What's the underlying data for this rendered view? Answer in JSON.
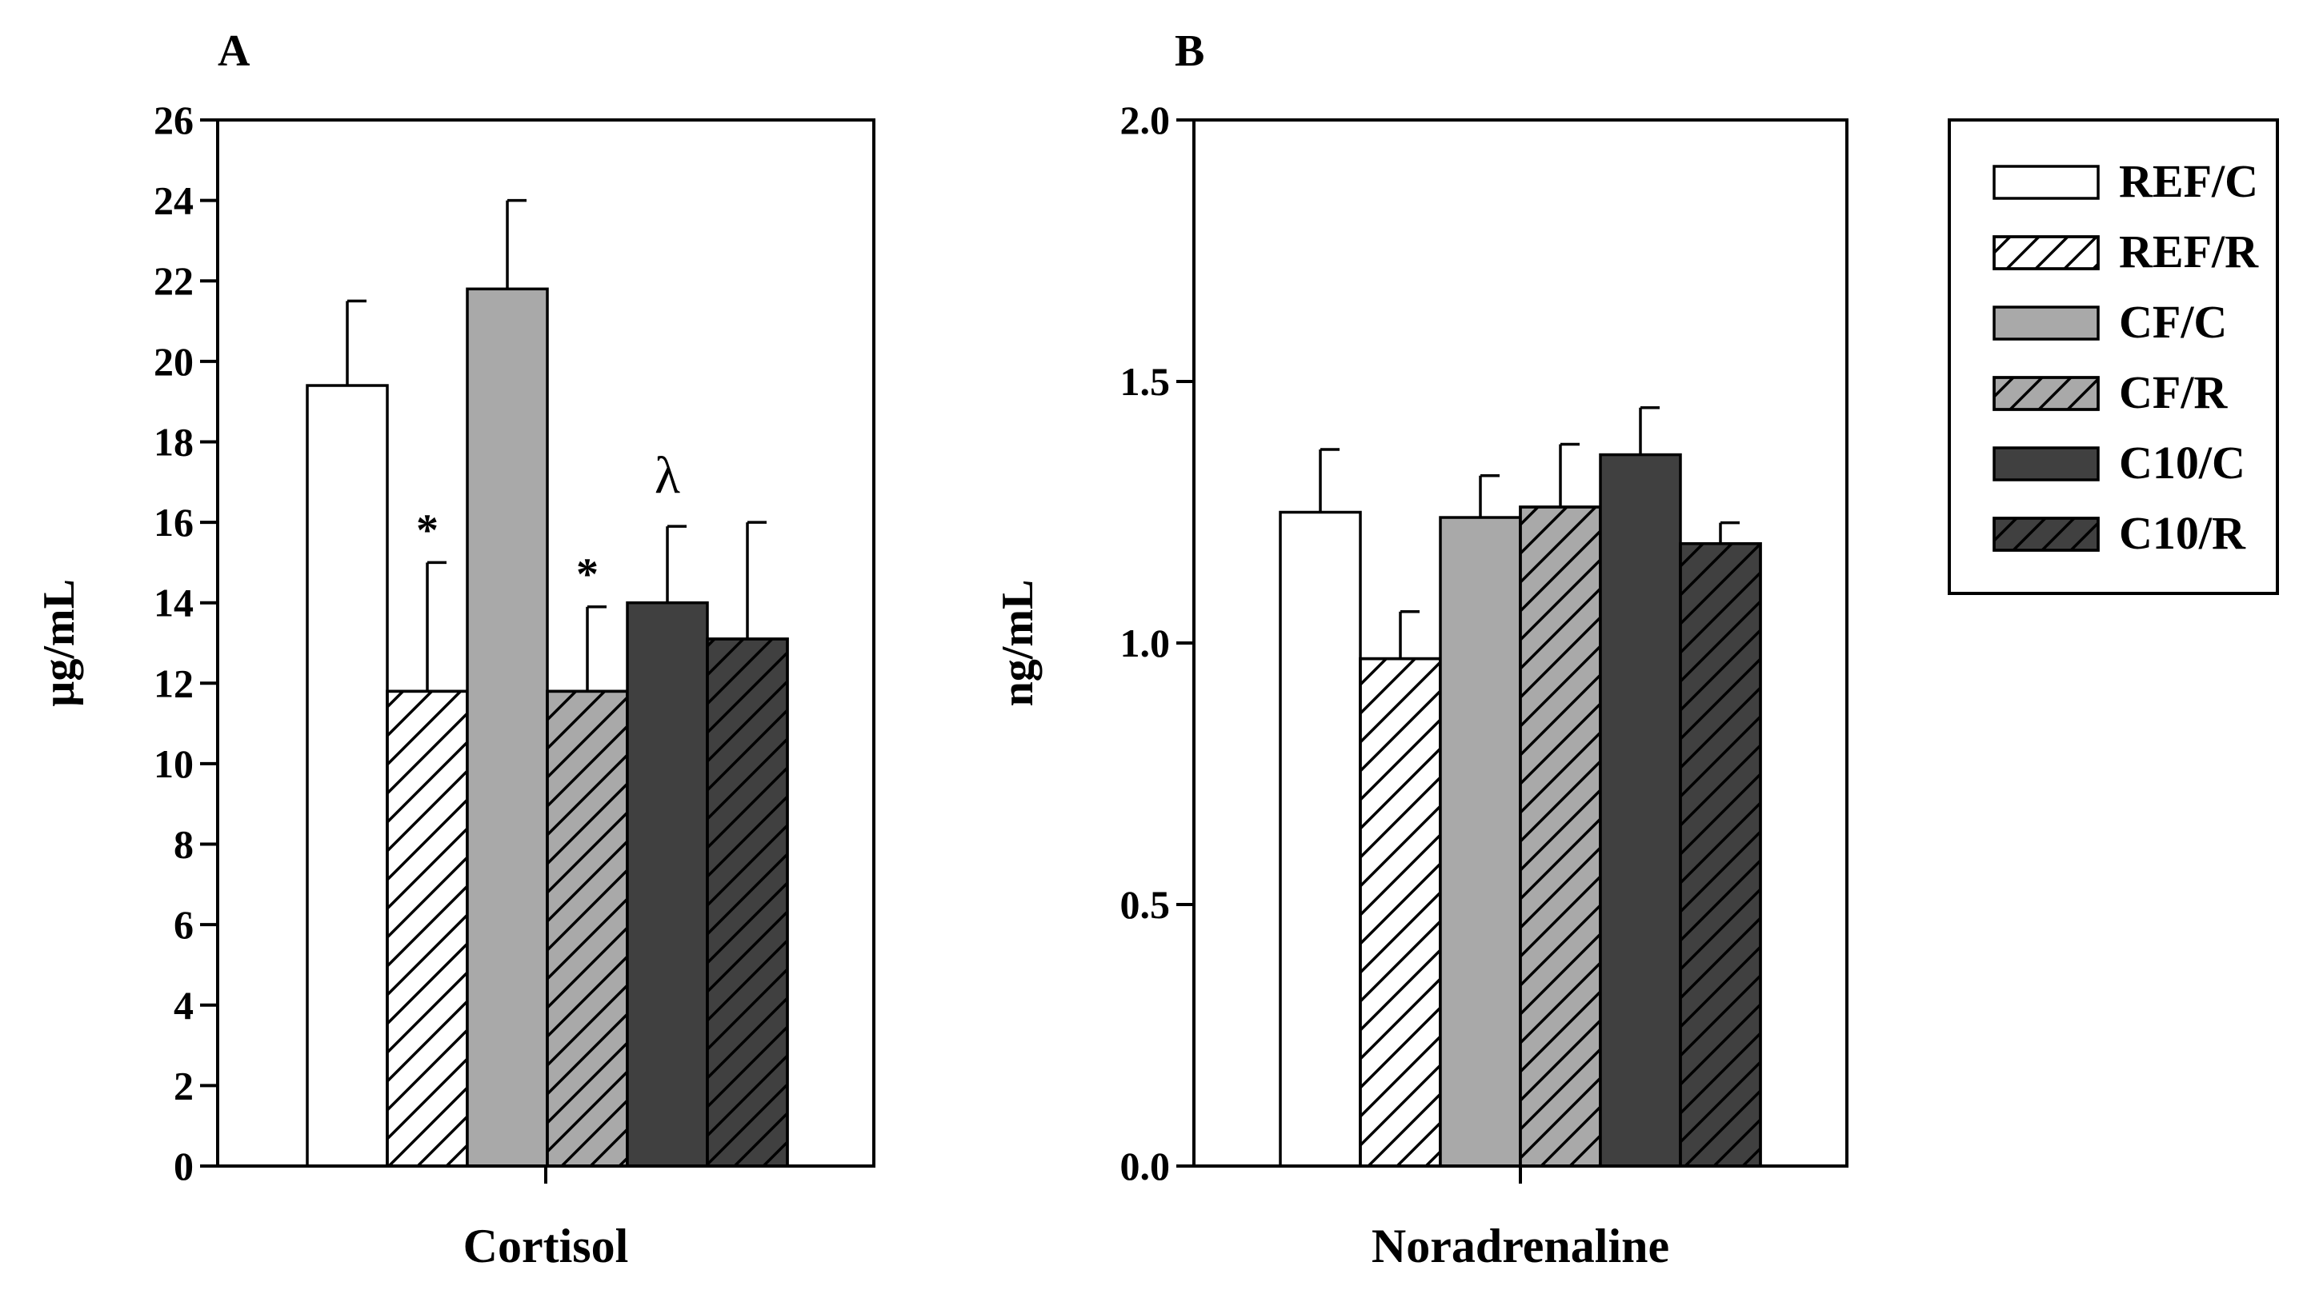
{
  "legend": {
    "items": [
      {
        "label": "REF/C",
        "color": "#ffffff",
        "hatched": false
      },
      {
        "label": "REF/R",
        "color": "#ffffff",
        "hatched": true
      },
      {
        "label": "CF/C",
        "color": "#a9a9a9",
        "hatched": false
      },
      {
        "label": "CF/R",
        "color": "#a9a9a9",
        "hatched": true
      },
      {
        "label": "C10/C",
        "color": "#404040",
        "hatched": false
      },
      {
        "label": "C10/R",
        "color": "#404040",
        "hatched": true
      }
    ]
  },
  "chart_data": [
    {
      "type": "bar",
      "panel_label": "A",
      "xlabel": "Cortisol",
      "ylabel": "µg/mL",
      "ylim": [
        0,
        26
      ],
      "yticks": [
        "0",
        "2",
        "4",
        "6",
        "8",
        "10",
        "12",
        "14",
        "16",
        "18",
        "20",
        "22",
        "24",
        "26"
      ],
      "categories": [
        "Cortisol"
      ],
      "series": [
        {
          "name": "REF/C",
          "value": 19.4,
          "error": 2.1,
          "annotation": ""
        },
        {
          "name": "REF/R",
          "value": 11.8,
          "error": 3.2,
          "annotation": "*"
        },
        {
          "name": "CF/C",
          "value": 21.8,
          "error": 2.2,
          "annotation": ""
        },
        {
          "name": "CF/R",
          "value": 11.8,
          "error": 2.1,
          "annotation": "*"
        },
        {
          "name": "C10/C",
          "value": 14.0,
          "error": 1.9,
          "annotation": "λ"
        },
        {
          "name": "C10/R",
          "value": 13.1,
          "error": 2.9,
          "annotation": ""
        }
      ]
    },
    {
      "type": "bar",
      "panel_label": "B",
      "xlabel": "Noradrenaline",
      "ylabel": "ng/mL",
      "ylim": [
        0,
        2.0
      ],
      "yticks": [
        "0.0",
        "0.5",
        "1.0",
        "1.5",
        "2.0"
      ],
      "categories": [
        "Noradrenaline"
      ],
      "series": [
        {
          "name": "REF/C",
          "value": 1.25,
          "error": 0.12,
          "annotation": ""
        },
        {
          "name": "REF/R",
          "value": 0.97,
          "error": 0.09,
          "annotation": ""
        },
        {
          "name": "CF/C",
          "value": 1.24,
          "error": 0.08,
          "annotation": ""
        },
        {
          "name": "CF/R",
          "value": 1.26,
          "error": 0.12,
          "annotation": ""
        },
        {
          "name": "C10/C",
          "value": 1.36,
          "error": 0.09,
          "annotation": ""
        },
        {
          "name": "C10/R",
          "value": 1.19,
          "error": 0.04,
          "annotation": ""
        }
      ]
    }
  ]
}
